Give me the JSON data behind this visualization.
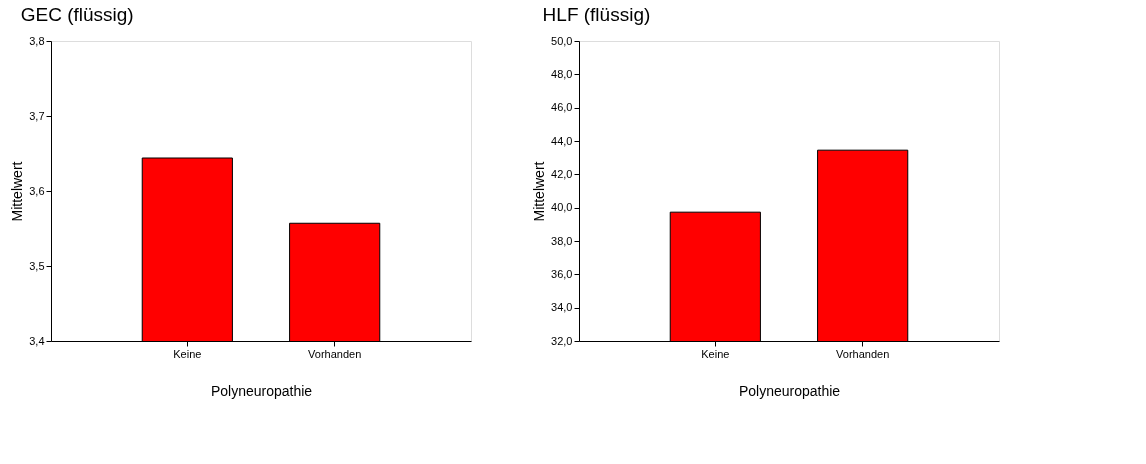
{
  "chart_data": [
    {
      "type": "bar",
      "title": "GEC (flüssig)",
      "xlabel": "Polyneuropathie",
      "ylabel": "Mittelwert",
      "categories": [
        "Keine",
        "Vorhanden"
      ],
      "series": [
        {
          "color": "#ff0000",
          "values": [
            3.644,
            3.557
          ]
        }
      ],
      "ylim": [
        3.4,
        3.8
      ],
      "yticks": [
        {
          "value": 3.4,
          "label": "3,4"
        },
        {
          "value": 3.5,
          "label": "3,5"
        },
        {
          "value": 3.6,
          "label": "3,6"
        },
        {
          "value": 3.7,
          "label": "3,7"
        },
        {
          "value": 3.8,
          "label": "3,8"
        }
      ],
      "grid": false
    },
    {
      "type": "bar",
      "title": "HLF (flüssig)",
      "xlabel": "Polyneuropathie",
      "ylabel": "Mittelwert",
      "categories": [
        "Keine",
        "Vorhanden"
      ],
      "series": [
        {
          "color": "#ff0000",
          "values": [
            39.73,
            43.45
          ]
        }
      ],
      "ylim": [
        32,
        50
      ],
      "yticks": [
        {
          "value": 32,
          "label": "32,0"
        },
        {
          "value": 34,
          "label": "34,0"
        },
        {
          "value": 36,
          "label": "36,0"
        },
        {
          "value": 38,
          "label": "38,0"
        },
        {
          "value": 40,
          "label": "40,0"
        },
        {
          "value": 42,
          "label": "42,0"
        },
        {
          "value": 44,
          "label": "44,0"
        },
        {
          "value": 46,
          "label": "46,0"
        },
        {
          "value": 48,
          "label": "48,0"
        },
        {
          "value": 50,
          "label": "50,0"
        }
      ],
      "grid": false
    }
  ]
}
